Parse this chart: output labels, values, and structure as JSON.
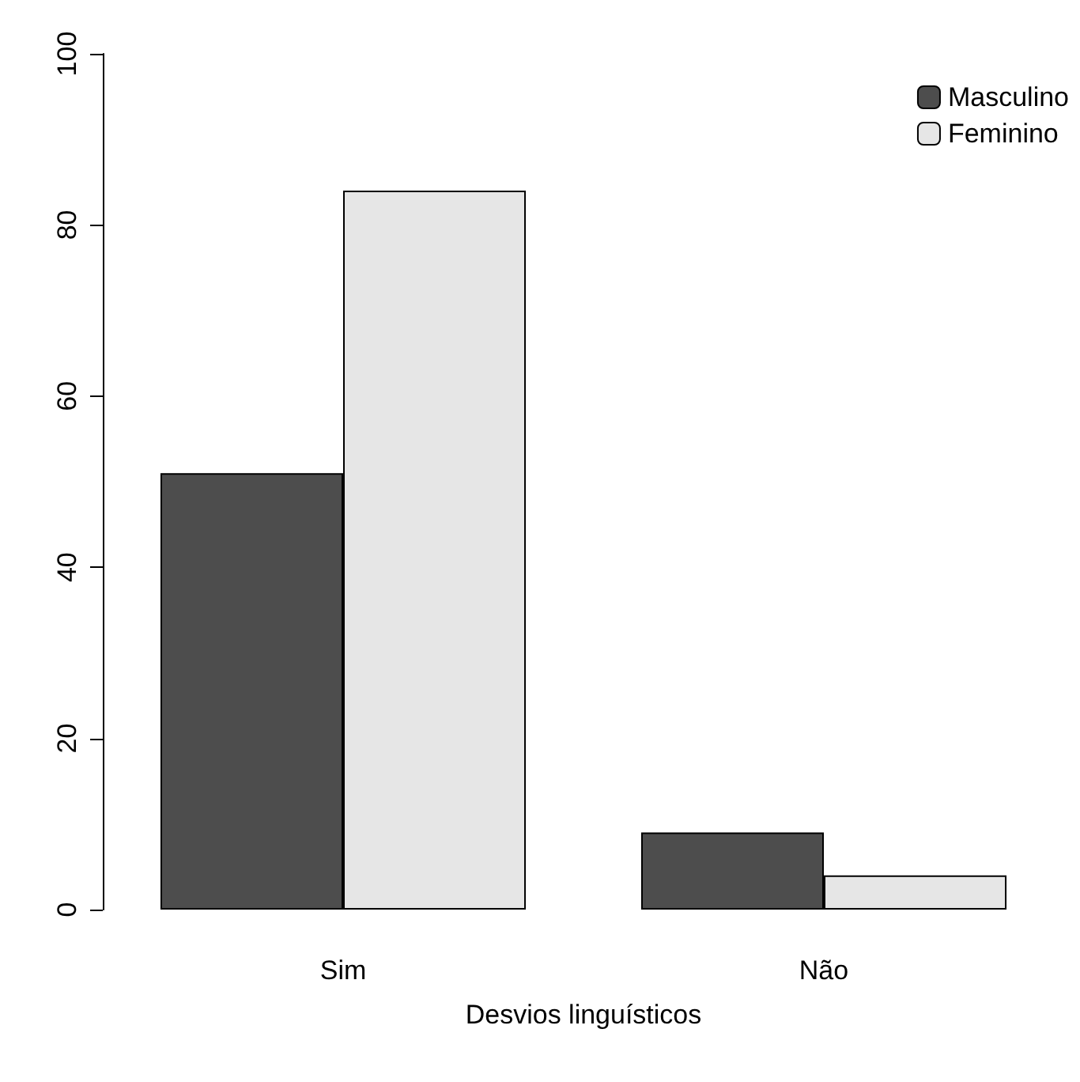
{
  "chart_data": {
    "type": "bar",
    "xlabel": "Desvios linguísticos",
    "categories": [
      "Sim",
      "Não"
    ],
    "series": [
      {
        "name": "Masculino",
        "color": "#4d4d4d",
        "values": [
          51,
          9
        ]
      },
      {
        "name": "Feminino",
        "color": "#e6e6e6",
        "values": [
          84,
          4
        ]
      }
    ],
    "ylim": [
      0,
      100
    ],
    "yticks": [
      0,
      20,
      40,
      60,
      80,
      100
    ],
    "grid": false,
    "legend": "top right"
  }
}
